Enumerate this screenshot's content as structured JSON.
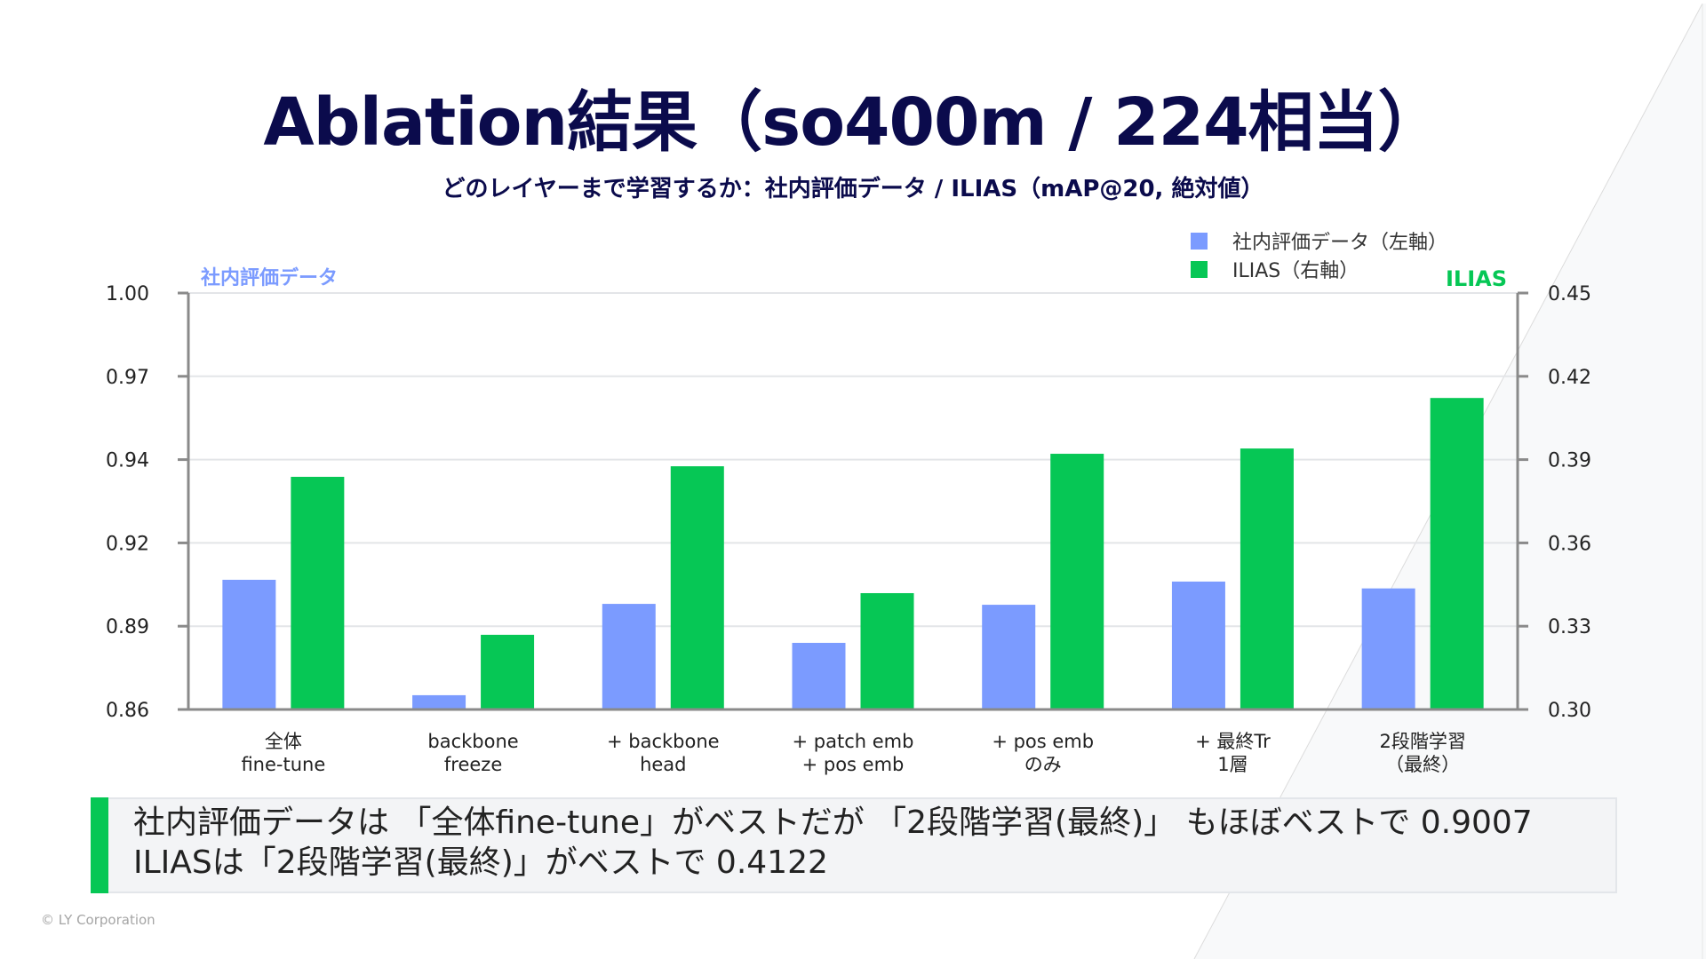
{
  "slide": {
    "title": "Ablation結果（so400m / 224相当）",
    "subtitle": "どのレイヤーまで学習するか：社内評価データ / ILIAS（mAP@20, 絶対値）",
    "callout_lines": [
      "社内評価データは 「全体fine-tune」がベストだが 「2段階学習(最終)」 もほぼベストで 0.9007",
      "ILIASは「2段階学習(最終)」がベストで 0.4122"
    ],
    "footer": "© LY Corporation"
  },
  "colors": {
    "title": "#0b0b4c",
    "series_internal": "#7b9bff",
    "series_ilias": "#06c755",
    "axis": "#8a8a8a",
    "grid": "#e3e5e8"
  },
  "chart_data": {
    "type": "bar",
    "title": "どのレイヤーまで学習するか：社内評価データ / ILIAS（mAP@20, 絶対値）",
    "categories": [
      [
        "全体",
        "fine-tune"
      ],
      [
        "backbone",
        "freeze"
      ],
      [
        "+ backbone",
        "head"
      ],
      [
        "+ patch emb",
        "+ pos emb"
      ],
      [
        "+ pos emb",
        "のみ"
      ],
      [
        "+ 最終Tr",
        "1層"
      ],
      [
        "2段階学習",
        "（最終）"
      ]
    ],
    "series": [
      {
        "name": "社内評価データ（左軸）",
        "axis": "left",
        "values": [
          0.9036,
          0.8648,
          0.8955,
          0.8824,
          0.8952,
          0.903,
          0.9007
        ]
      },
      {
        "name": "ILIAS（右軸）",
        "axis": "right",
        "values": [
          0.3838,
          0.3269,
          0.3876,
          0.3419,
          0.3921,
          0.394,
          0.4122
        ]
      }
    ],
    "left_axis": {
      "label": "社内評価データ",
      "range": [
        0.86,
        1.0
      ],
      "ticks": [
        "0.86",
        "0.89",
        "0.92",
        "0.94",
        "0.97",
        "1.00"
      ]
    },
    "right_axis": {
      "label": "ILIAS",
      "range": [
        0.3,
        0.45
      ],
      "ticks": [
        "0.30",
        "0.33",
        "0.36",
        "0.39",
        "0.42",
        "0.45"
      ]
    },
    "grid": true,
    "legend_position": "top-right"
  }
}
